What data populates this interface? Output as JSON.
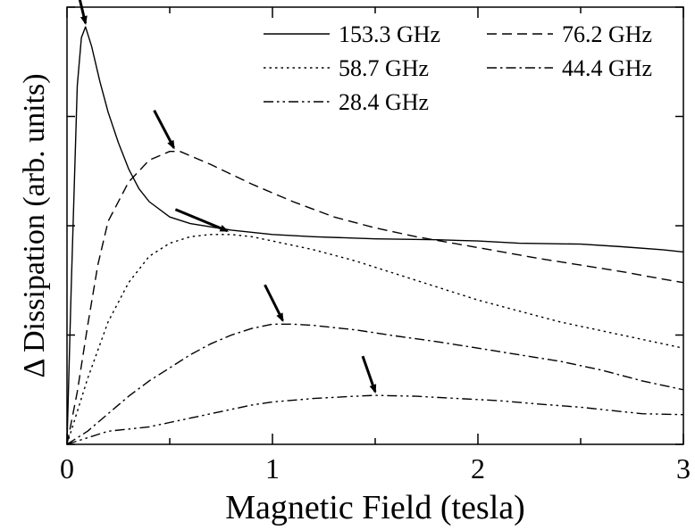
{
  "chart_data": {
    "type": "line",
    "xlabel": "Magnetic Field (tesla)",
    "ylabel": "Δ Dissipation (arb. units)",
    "xlim": [
      0,
      3
    ],
    "ylim": [
      0,
      1.0
    ],
    "x_ticks": [
      "0",
      "1",
      "2",
      "3"
    ],
    "y_ticks_labeled": false,
    "grid": false,
    "legend_position": "top-right",
    "series": [
      {
        "name": "153.3 GHz",
        "dash": "solid",
        "peak_x": 0.09,
        "points": [
          [
            0,
            0
          ],
          [
            0.02,
            0.35
          ],
          [
            0.05,
            0.82
          ],
          [
            0.07,
            0.93
          ],
          [
            0.09,
            0.955
          ],
          [
            0.12,
            0.91
          ],
          [
            0.16,
            0.83
          ],
          [
            0.2,
            0.76
          ],
          [
            0.25,
            0.69
          ],
          [
            0.3,
            0.63
          ],
          [
            0.35,
            0.585
          ],
          [
            0.4,
            0.555
          ],
          [
            0.5,
            0.52
          ],
          [
            0.6,
            0.505
          ],
          [
            0.8,
            0.49
          ],
          [
            1.0,
            0.48
          ],
          [
            1.2,
            0.475
          ],
          [
            1.5,
            0.47
          ],
          [
            1.8,
            0.468
          ],
          [
            2.0,
            0.465
          ],
          [
            2.2,
            0.46
          ],
          [
            2.5,
            0.458
          ],
          [
            2.7,
            0.452
          ],
          [
            2.9,
            0.445
          ],
          [
            3.0,
            0.44
          ]
        ]
      },
      {
        "name": "76.2 GHz",
        "dash": "dashed",
        "peak_x": 0.52,
        "points": [
          [
            0,
            0
          ],
          [
            0.05,
            0.12
          ],
          [
            0.1,
            0.27
          ],
          [
            0.15,
            0.41
          ],
          [
            0.2,
            0.51
          ],
          [
            0.3,
            0.6
          ],
          [
            0.4,
            0.65
          ],
          [
            0.5,
            0.67
          ],
          [
            0.55,
            0.67
          ],
          [
            0.7,
            0.64
          ],
          [
            0.9,
            0.595
          ],
          [
            1.1,
            0.555
          ],
          [
            1.3,
            0.52
          ],
          [
            1.5,
            0.495
          ],
          [
            1.7,
            0.475
          ],
          [
            2.0,
            0.45
          ],
          [
            2.3,
            0.425
          ],
          [
            2.5,
            0.41
          ],
          [
            2.7,
            0.395
          ],
          [
            2.9,
            0.378
          ],
          [
            3.0,
            0.37
          ]
        ]
      },
      {
        "name": "58.7 GHz",
        "dash": "dotted",
        "peak_x": 0.78,
        "points": [
          [
            0,
            0
          ],
          [
            0.1,
            0.15
          ],
          [
            0.2,
            0.28
          ],
          [
            0.3,
            0.37
          ],
          [
            0.4,
            0.43
          ],
          [
            0.5,
            0.46
          ],
          [
            0.6,
            0.475
          ],
          [
            0.7,
            0.48
          ],
          [
            0.8,
            0.48
          ],
          [
            0.9,
            0.475
          ],
          [
            1.0,
            0.465
          ],
          [
            1.2,
            0.445
          ],
          [
            1.4,
            0.42
          ],
          [
            1.6,
            0.39
          ],
          [
            1.8,
            0.36
          ],
          [
            2.0,
            0.33
          ],
          [
            2.2,
            0.305
          ],
          [
            2.4,
            0.28
          ],
          [
            2.6,
            0.26
          ],
          [
            2.8,
            0.24
          ],
          [
            3.0,
            0.22
          ]
        ]
      },
      {
        "name": "44.4 GHz",
        "dash": "dash-dot",
        "peak_x": 1.05,
        "points": [
          [
            0,
            0
          ],
          [
            0.1,
            0.03
          ],
          [
            0.2,
            0.07
          ],
          [
            0.3,
            0.11
          ],
          [
            0.4,
            0.145
          ],
          [
            0.5,
            0.175
          ],
          [
            0.6,
            0.205
          ],
          [
            0.7,
            0.23
          ],
          [
            0.8,
            0.25
          ],
          [
            0.9,
            0.265
          ],
          [
            1.0,
            0.275
          ],
          [
            1.1,
            0.275
          ],
          [
            1.2,
            0.272
          ],
          [
            1.4,
            0.262
          ],
          [
            1.6,
            0.248
          ],
          [
            1.8,
            0.235
          ],
          [
            2.0,
            0.22
          ],
          [
            2.2,
            0.205
          ],
          [
            2.4,
            0.19
          ],
          [
            2.6,
            0.17
          ],
          [
            2.8,
            0.145
          ],
          [
            3.0,
            0.125
          ]
        ]
      },
      {
        "name": "28.4 GHz",
        "dash": "dash-dot-dot",
        "peak_x": 1.5,
        "points": [
          [
            0,
            0
          ],
          [
            0.1,
            0.015
          ],
          [
            0.2,
            0.03
          ],
          [
            0.3,
            0.035
          ],
          [
            0.4,
            0.04
          ],
          [
            0.5,
            0.05
          ],
          [
            0.6,
            0.06
          ],
          [
            0.7,
            0.07
          ],
          [
            0.8,
            0.08
          ],
          [
            0.9,
            0.09
          ],
          [
            1.0,
            0.097
          ],
          [
            1.2,
            0.105
          ],
          [
            1.4,
            0.11
          ],
          [
            1.5,
            0.112
          ],
          [
            1.7,
            0.11
          ],
          [
            1.9,
            0.105
          ],
          [
            2.1,
            0.1
          ],
          [
            2.3,
            0.092
          ],
          [
            2.5,
            0.085
          ],
          [
            2.7,
            0.075
          ],
          [
            2.8,
            0.07
          ],
          [
            3.0,
            0.068
          ]
        ]
      }
    ]
  }
}
